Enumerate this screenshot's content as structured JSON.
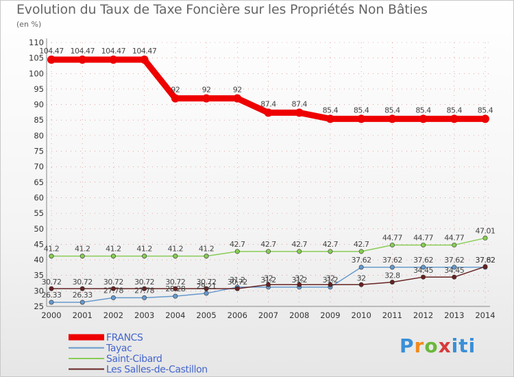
{
  "title": "Evolution du Taux de Taxe Foncière sur les Propriétés Non Bâties",
  "subtitle": "(en %)",
  "logo": "Proxiti",
  "colors": {
    "grid": "#cc3333",
    "axis": "#888888"
  },
  "chart_data": {
    "type": "line",
    "title": "Evolution du Taux de Taxe Foncière sur les Propriétés Non Bâties",
    "ylabel": "(en %)",
    "ylim": [
      25,
      110
    ],
    "yticks": [
      25,
      30,
      35,
      40,
      45,
      50,
      55,
      60,
      65,
      70,
      75,
      80,
      85,
      90,
      95,
      100,
      105,
      110
    ],
    "x": [
      "2000",
      "2001",
      "2002",
      "2003",
      "2004",
      "2005",
      "2006",
      "2007",
      "2008",
      "2009",
      "2010",
      "2011",
      "2012",
      "2013",
      "2014"
    ],
    "grid": true,
    "legend": "bottom-left",
    "series": [
      {
        "name": "FRANCS",
        "color": "#ee0000",
        "values": [
          104.47,
          104.47,
          104.47,
          104.47,
          92,
          92,
          92,
          87.4,
          87.4,
          85.4,
          85.4,
          85.4,
          85.4,
          85.4,
          85.4
        ],
        "labels": [
          "104.47",
          "104.47",
          "104.47",
          "104.47",
          "92",
          "92",
          "92",
          "87.4",
          "87.4",
          "85.4",
          "85.4",
          "85.4",
          "85.4",
          "85.4",
          "85.4"
        ]
      },
      {
        "name": "Tayac",
        "color": "#6699cc",
        "values": [
          26.33,
          26.33,
          27.78,
          27.78,
          28.28,
          29.21,
          31.2,
          31.2,
          31.2,
          31.2,
          37.62,
          37.62,
          37.62,
          37.62,
          37.62
        ],
        "labels": [
          "26.33",
          "26.33",
          "27.78",
          "27.78",
          "28.28",
          "29.21",
          "31.2",
          "31.2",
          "31.2",
          "31.2",
          "37.62",
          "37.62",
          "37.62",
          "37.62",
          "37.62"
        ]
      },
      {
        "name": "Saint-Cibard",
        "color": "#88cc55",
        "values": [
          41.2,
          41.2,
          41.2,
          41.2,
          41.2,
          41.2,
          42.7,
          42.7,
          42.7,
          42.7,
          42.7,
          44.77,
          44.77,
          44.77,
          47.01
        ],
        "labels": [
          "41.2",
          "41.2",
          "41.2",
          "41.2",
          "41.2",
          "41.2",
          "42.7",
          "42.7",
          "42.7",
          "42.7",
          "42.7",
          "44.77",
          "44.77",
          "44.77",
          "47.01"
        ]
      },
      {
        "name": "Les Salles-de-Castillon",
        "color": "#662222",
        "values": [
          30.72,
          30.72,
          30.72,
          30.72,
          30.72,
          30.72,
          30.72,
          32,
          32,
          32,
          32,
          32.8,
          34.45,
          34.45,
          37.82
        ],
        "labels": [
          "30.72",
          "30.72",
          "30.72",
          "30.72",
          "30.72",
          "30.72",
          "30.72",
          "32",
          "32",
          "32",
          "32",
          "32.8",
          "34.45",
          "34.45",
          "37.82"
        ]
      }
    ]
  }
}
